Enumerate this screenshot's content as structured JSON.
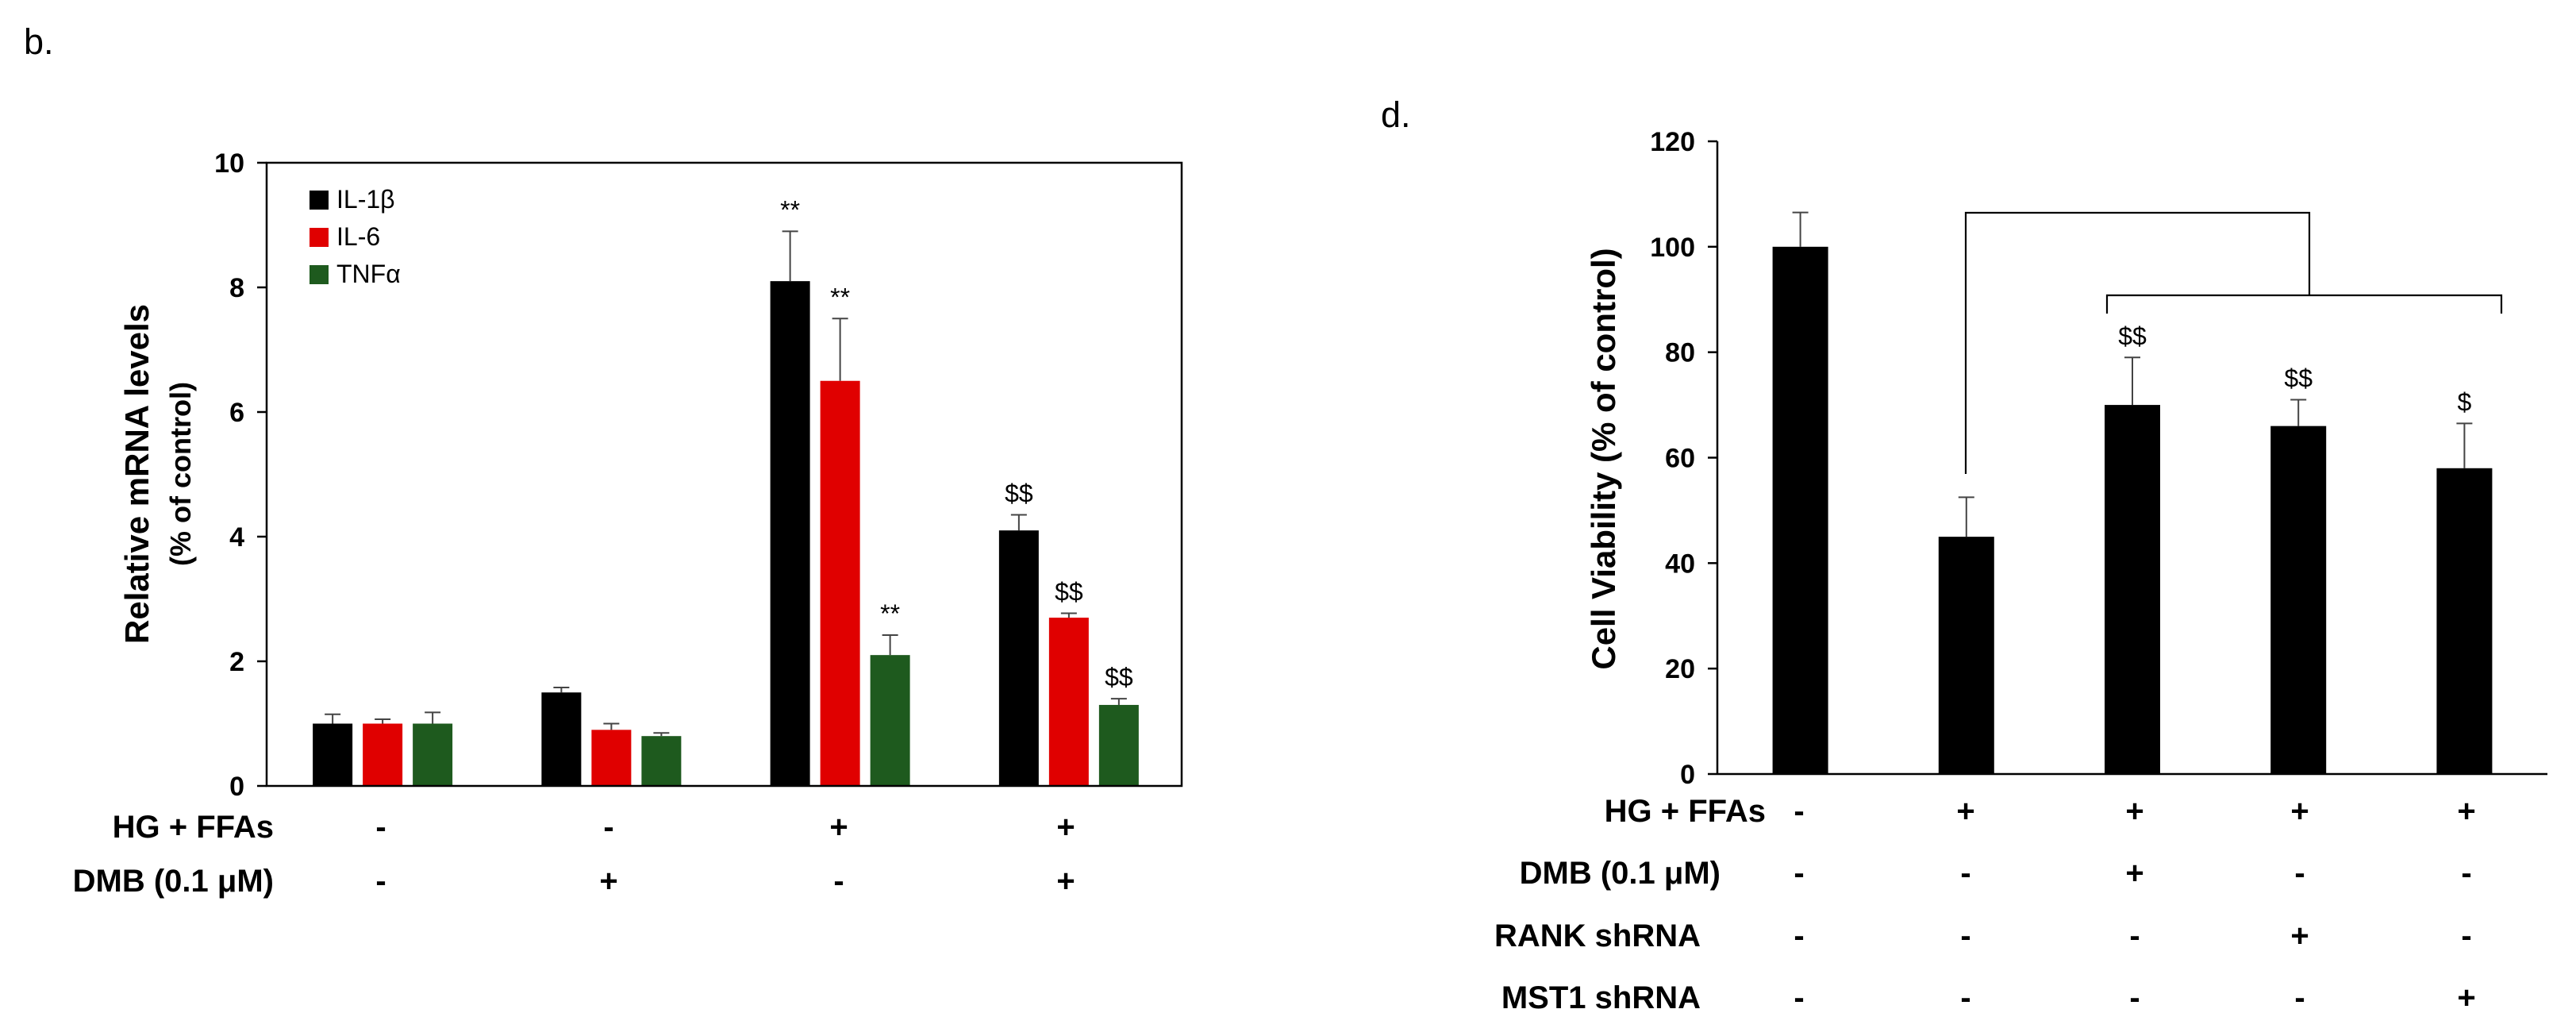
{
  "chart_data": [
    {
      "panel_label": "b.",
      "type": "bar",
      "ylabel": "Relative mRNA levels",
      "ylabel_sub": "(% of control)",
      "ylim": [
        0,
        10
      ],
      "yticks": [
        "0",
        "2",
        "4",
        "6",
        "8",
        "10"
      ],
      "legend_position": "top-left",
      "series": [
        {
          "name": "IL-1β",
          "color": "#000000",
          "values": [
            1.0,
            1.5,
            8.1,
            4.1
          ],
          "errors": [
            0.15,
            0.08,
            0.8,
            0.25
          ],
          "annotations": [
            "",
            "",
            "**",
            "$$"
          ]
        },
        {
          "name": "IL-6",
          "color": "#e00000",
          "values": [
            1.0,
            0.9,
            6.5,
            2.7
          ],
          "errors": [
            0.07,
            0.1,
            1.0,
            0.07
          ],
          "annotations": [
            "",
            "",
            "**",
            "$$"
          ]
        },
        {
          "name": "TNFα",
          "color": "#1e5a1e",
          "values": [
            1.0,
            0.8,
            2.1,
            1.3
          ],
          "errors": [
            0.18,
            0.05,
            0.32,
            0.1
          ],
          "annotations": [
            "",
            "",
            "**",
            "$$"
          ]
        }
      ],
      "conditions": [
        {
          "label": "HG + FFAs",
          "values": [
            "-",
            "-",
            "+",
            "+"
          ]
        },
        {
          "label": "DMB (0.1 μM)",
          "values": [
            "-",
            "+",
            "-",
            "+"
          ]
        }
      ]
    },
    {
      "panel_label": "d.",
      "type": "bar",
      "ylabel": "Cell Viability (% of control)",
      "ylim": [
        0,
        120
      ],
      "yticks": [
        "0",
        "20",
        "40",
        "60",
        "80",
        "100",
        "120"
      ],
      "color": "#000000",
      "values": [
        100,
        45,
        70,
        66,
        58
      ],
      "errors": [
        6.5,
        7.5,
        9,
        5,
        8.5
      ],
      "annotations": [
        "",
        "",
        "$$",
        "$$",
        "$"
      ],
      "comparison": "bar 2 vs bars 3-5",
      "conditions": [
        {
          "label": "HG + FFAs",
          "values": [
            "-",
            "+",
            "+",
            "+",
            "+"
          ]
        },
        {
          "label": "DMB (0.1 μM)",
          "values": [
            "-",
            "-",
            "+",
            "-",
            "-"
          ]
        },
        {
          "label": "RANK shRNA",
          "values": [
            "-",
            "-",
            "-",
            "+",
            "-"
          ]
        },
        {
          "label": "MST1 shRNA",
          "values": [
            "-",
            "-",
            "-",
            "-",
            "+"
          ]
        }
      ]
    }
  ]
}
